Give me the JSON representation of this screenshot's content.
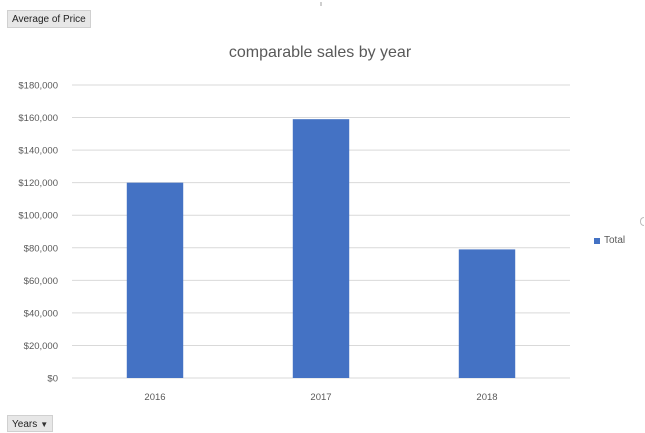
{
  "field_buttons": {
    "values_field": "Average of Price",
    "axis_field": "Years"
  },
  "colors": {
    "bar": "#4472c4",
    "grid": "#d9d9d9",
    "text": "#595959"
  },
  "chart_data": {
    "type": "bar",
    "title": "comparable sales by year",
    "xlabel": "",
    "ylabel": "",
    "categories": [
      "2016",
      "2017",
      "2018"
    ],
    "series": [
      {
        "name": "Total",
        "values": [
          120000,
          159000,
          79000
        ]
      }
    ],
    "ylim": [
      0,
      180000
    ],
    "yticks": [
      "$0",
      "$20,000",
      "$40,000",
      "$60,000",
      "$80,000",
      "$100,000",
      "$120,000",
      "$140,000",
      "$160,000",
      "$180,000"
    ],
    "grid": true,
    "legend": "right"
  }
}
